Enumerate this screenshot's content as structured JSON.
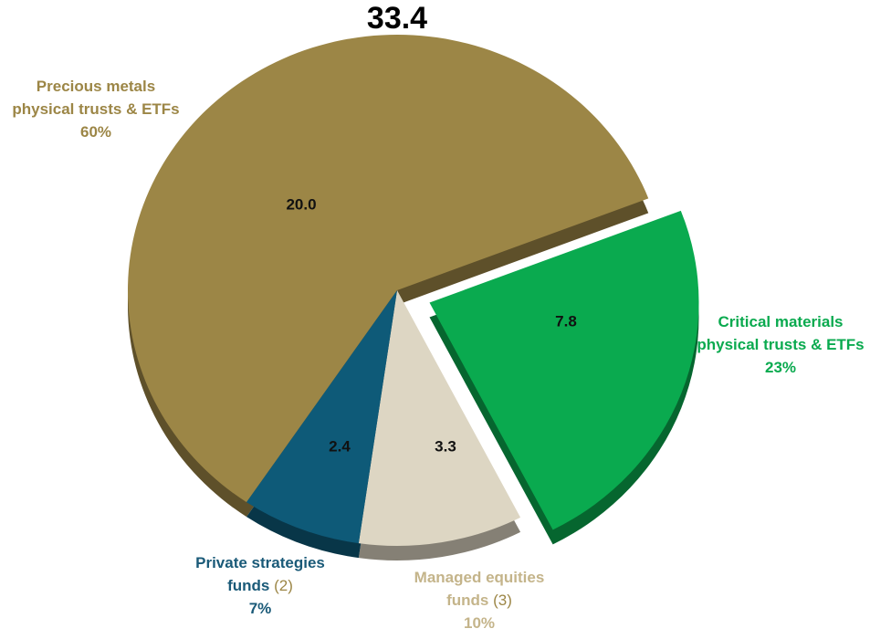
{
  "chart_data": {
    "type": "pie",
    "title": "33.4",
    "categories": [
      "Precious metals physical trusts & ETFs",
      "Critical materials physical trusts & ETFs",
      "Managed equities funds",
      "Private strategies funds"
    ],
    "footnotes": [
      null,
      null,
      "(3)",
      "(2)"
    ],
    "values": [
      20.0,
      7.8,
      3.3,
      2.4
    ],
    "value_labels": [
      "20.0",
      "7.8",
      "3.3",
      "2.4"
    ],
    "percent_labels": [
      "60%",
      "23%",
      "10%",
      "7%"
    ],
    "colors": [
      "#9c8646",
      "#0aaa4f",
      "#ddd6c3",
      "#0e5a78"
    ],
    "label_colors": [
      "#9c8646",
      "#0aaa4f",
      "#c4b48a",
      "#1a5a78"
    ],
    "exploded": [
      false,
      true,
      false,
      false
    ]
  }
}
